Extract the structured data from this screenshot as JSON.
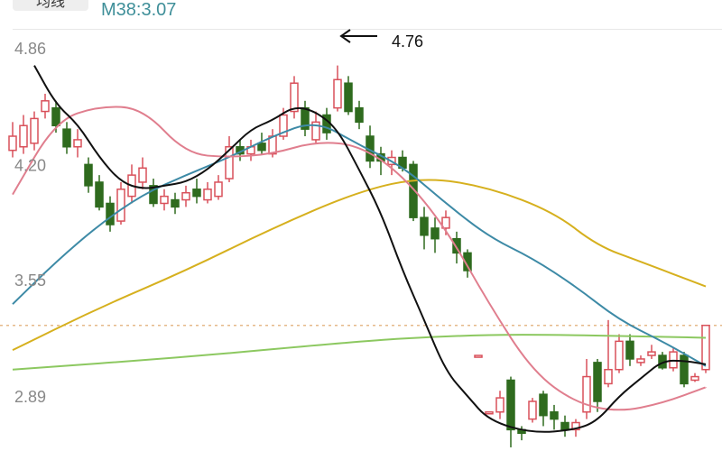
{
  "header": {
    "tab_label": "均线",
    "ma_readout": "M38:3.07"
  },
  "chart_data": {
    "type": "candlestick",
    "yticks": [
      "4.86",
      "4.20",
      "3.55",
      "2.89"
    ],
    "ylim": [
      2.63,
      4.96
    ],
    "reference_line": 3.29,
    "annotation": {
      "text": "4.76",
      "value": 4.76,
      "index": 30
    },
    "colors": {
      "up": "#d9505a",
      "down": "#2f6b1e",
      "ma5": "#111111",
      "ma10": "#e07e8e",
      "ma20": "#3d8aa6",
      "ma60": "#d6b01e",
      "ma120": "#8cc860",
      "ref": "#e5b98a"
    },
    "candles": [
      [
        4.28,
        4.36,
        4.44,
        4.24
      ],
      [
        4.3,
        4.42,
        4.48,
        4.26
      ],
      [
        4.32,
        4.46,
        4.5,
        4.28
      ],
      [
        4.5,
        4.56,
        4.6,
        4.46
      ],
      [
        4.52,
        4.42,
        4.56,
        4.38
      ],
      [
        4.4,
        4.3,
        4.44,
        4.26
      ],
      [
        4.3,
        4.34,
        4.4,
        4.24
      ],
      [
        4.2,
        4.08,
        4.24,
        4.04
      ],
      [
        4.1,
        3.96,
        4.14,
        3.94
      ],
      [
        3.98,
        3.86,
        4.02,
        3.82
      ],
      [
        3.88,
        4.06,
        4.1,
        3.86
      ],
      [
        4.02,
        4.14,
        4.2,
        3.98
      ],
      [
        4.1,
        4.18,
        4.24,
        4.06
      ],
      [
        4.08,
        3.98,
        4.12,
        3.96
      ],
      [
        3.98,
        4.02,
        4.06,
        3.94
      ],
      [
        4.0,
        3.96,
        4.04,
        3.92
      ],
      [
        4.0,
        4.04,
        4.08,
        3.96
      ],
      [
        4.06,
        4.02,
        4.12,
        3.98
      ],
      [
        4.0,
        4.06,
        4.1,
        3.98
      ],
      [
        4.02,
        4.1,
        4.14,
        4.0
      ],
      [
        4.12,
        4.3,
        4.36,
        4.1
      ],
      [
        4.3,
        4.26,
        4.34,
        4.22
      ],
      [
        4.26,
        4.3,
        4.34,
        4.22
      ],
      [
        4.32,
        4.28,
        4.38,
        4.26
      ],
      [
        4.26,
        4.36,
        4.4,
        4.24
      ],
      [
        4.36,
        4.48,
        4.52,
        4.34
      ],
      [
        4.5,
        4.66,
        4.7,
        4.46
      ],
      [
        4.52,
        4.4,
        4.56,
        4.36
      ],
      [
        4.34,
        4.44,
        4.5,
        4.32
      ],
      [
        4.48,
        4.38,
        4.52,
        4.34
      ],
      [
        4.52,
        4.68,
        4.76,
        4.5
      ],
      [
        4.66,
        4.5,
        4.7,
        4.48
      ],
      [
        4.52,
        4.44,
        4.56,
        4.4
      ],
      [
        4.36,
        4.22,
        4.42,
        4.18
      ],
      [
        4.26,
        4.22,
        4.3,
        4.14
      ],
      [
        4.2,
        4.24,
        4.28,
        4.14
      ],
      [
        4.24,
        4.18,
        4.28,
        4.16
      ],
      [
        4.2,
        3.9,
        4.22,
        3.88
      ],
      [
        3.9,
        3.8,
        3.96,
        3.72
      ],
      [
        3.84,
        3.78,
        3.9,
        3.7
      ],
      [
        3.84,
        3.9,
        3.94,
        3.8
      ],
      [
        3.78,
        3.7,
        3.82,
        3.64
      ],
      [
        3.7,
        3.6,
        3.72,
        3.56
      ],
      [
        3.12,
        3.12,
        3.12,
        3.12
      ],
      [
        2.8,
        2.8,
        2.8,
        2.8
      ],
      [
        2.8,
        2.88,
        2.92,
        2.76
      ],
      [
        2.98,
        2.7,
        3.0,
        2.6
      ],
      [
        2.7,
        2.68,
        2.72,
        2.64
      ],
      [
        2.76,
        2.86,
        2.88,
        2.74
      ],
      [
        2.9,
        2.78,
        2.92,
        2.72
      ],
      [
        2.8,
        2.76,
        2.84,
        2.7
      ],
      [
        2.74,
        2.7,
        2.78,
        2.66
      ],
      [
        2.7,
        2.74,
        2.76,
        2.66
      ],
      [
        2.8,
        3.0,
        3.1,
        2.76
      ],
      [
        3.08,
        2.86,
        3.1,
        2.8
      ],
      [
        2.96,
        3.04,
        3.32,
        2.94
      ],
      [
        3.04,
        3.2,
        3.24,
        3.02
      ],
      [
        3.2,
        3.1,
        3.24,
        3.06
      ],
      [
        3.08,
        3.1,
        3.12,
        3.06
      ],
      [
        3.12,
        3.14,
        3.18,
        3.1
      ],
      [
        3.12,
        3.05,
        3.14,
        3.04
      ],
      [
        3.05,
        3.14,
        3.16,
        3.03
      ],
      [
        3.12,
        2.96,
        3.14,
        2.94
      ],
      [
        2.98,
        3.0,
        3.02,
        2.97
      ],
      [
        3.04,
        3.29,
        3.29,
        3.02
      ]
    ],
    "ma_lines": {
      "ma5": [
        [
          2,
          4.76
        ],
        [
          4,
          4.54
        ],
        [
          6,
          4.43
        ],
        [
          8,
          4.24
        ],
        [
          10,
          4.1
        ],
        [
          12,
          4.06
        ],
        [
          14,
          4.08
        ],
        [
          16,
          4.1
        ],
        [
          18,
          4.17
        ],
        [
          20,
          4.28
        ],
        [
          22,
          4.4
        ],
        [
          24,
          4.45
        ],
        [
          26,
          4.53
        ],
        [
          28,
          4.5
        ],
        [
          30,
          4.4
        ],
        [
          32,
          4.17
        ],
        [
          34,
          3.93
        ],
        [
          36,
          3.6
        ],
        [
          38,
          3.32
        ],
        [
          40,
          3.03
        ],
        [
          42,
          2.89
        ],
        [
          44,
          2.75
        ],
        [
          48,
          2.68
        ],
        [
          52,
          2.7
        ],
        [
          54,
          2.75
        ],
        [
          56,
          2.89
        ],
        [
          58,
          2.99
        ],
        [
          60,
          3.09
        ],
        [
          62,
          3.09
        ],
        [
          64,
          3.07
        ]
      ],
      "ma10": [
        [
          0,
          4.03
        ],
        [
          4,
          4.45
        ],
        [
          8,
          4.53
        ],
        [
          12,
          4.52
        ],
        [
          16,
          4.26
        ],
        [
          20,
          4.24
        ],
        [
          24,
          4.26
        ],
        [
          28,
          4.33
        ],
        [
          32,
          4.31
        ],
        [
          36,
          4.14
        ],
        [
          40,
          3.84
        ],
        [
          44,
          3.41
        ],
        [
          48,
          3.03
        ],
        [
          52,
          2.85
        ],
        [
          56,
          2.8
        ],
        [
          60,
          2.85
        ],
        [
          64,
          2.94
        ]
      ],
      "ma20": [
        [
          0,
          3.41
        ],
        [
          4,
          3.65
        ],
        [
          8,
          3.86
        ],
        [
          12,
          4.03
        ],
        [
          16,
          4.14
        ],
        [
          20,
          4.24
        ],
        [
          24,
          4.36
        ],
        [
          28,
          4.45
        ],
        [
          32,
          4.31
        ],
        [
          36,
          4.19
        ],
        [
          40,
          3.98
        ],
        [
          44,
          3.79
        ],
        [
          48,
          3.67
        ],
        [
          52,
          3.51
        ],
        [
          56,
          3.32
        ],
        [
          60,
          3.2
        ],
        [
          64,
          3.06
        ]
      ],
      "ma60": [
        [
          0,
          3.15
        ],
        [
          8,
          3.39
        ],
        [
          16,
          3.6
        ],
        [
          24,
          3.84
        ],
        [
          32,
          4.05
        ],
        [
          38,
          4.13
        ],
        [
          44,
          4.07
        ],
        [
          50,
          3.93
        ],
        [
          54,
          3.74
        ],
        [
          58,
          3.65
        ],
        [
          64,
          3.51
        ]
      ],
      "ma120": [
        [
          0,
          3.04
        ],
        [
          16,
          3.11
        ],
        [
          32,
          3.2
        ],
        [
          40,
          3.23
        ],
        [
          48,
          3.24
        ],
        [
          64,
          3.22
        ]
      ]
    }
  }
}
